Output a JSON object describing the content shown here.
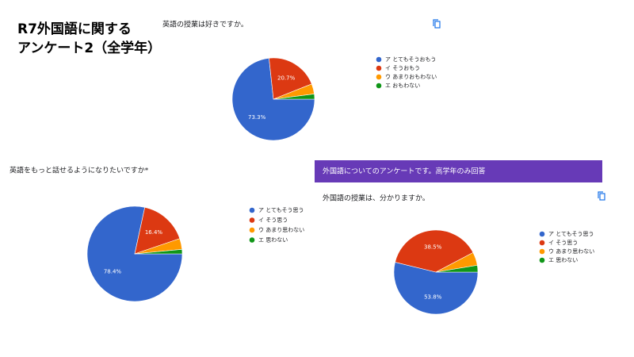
{
  "title": [
    "R7外国語に関する",
    "アンケート2（全学年）"
  ],
  "banner": "外国語についてのアンケートです。高学年のみ回答",
  "chart_data": [
    {
      "type": "pie",
      "title": "英語の授業は好きですか。",
      "categories": [
        "ア とてもそうおもう",
        "イ そうおもう",
        "ウ あまりおもわない",
        "エ おもわない"
      ],
      "values": [
        73.3,
        20.7,
        4.0,
        2.0
      ],
      "value_labels": [
        "73.3%",
        "20.7%",
        null,
        null
      ],
      "colors": [
        "#3366cc",
        "#dc3912",
        "#ff9900",
        "#109618"
      ]
    },
    {
      "type": "pie",
      "title": "英語をもっと話せるようになりたいですか*",
      "categories": [
        "ア とてもそう思う",
        "イ そう思う",
        "ウ あまり思わない",
        "エ 思わない"
      ],
      "values": [
        78.4,
        16.4,
        3.7,
        1.5
      ],
      "value_labels": [
        "78.4%",
        "16.4%",
        null,
        null
      ],
      "colors": [
        "#3366cc",
        "#dc3912",
        "#ff9900",
        "#109618"
      ]
    },
    {
      "type": "pie",
      "title": "外国語の授業は、分かりますか。",
      "categories": [
        "ア とてもそう思う",
        "イ そう思う",
        "ウ あまり思わない",
        "エ 思わない"
      ],
      "values": [
        53.8,
        38.5,
        5.1,
        2.6
      ],
      "value_labels": [
        "53.8%",
        "38.5%",
        null,
        null
      ],
      "colors": [
        "#3366cc",
        "#dc3912",
        "#ff9900",
        "#109618"
      ]
    }
  ]
}
